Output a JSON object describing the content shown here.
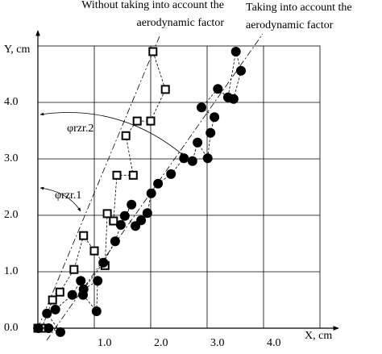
{
  "chart_data": {
    "type": "scatter",
    "x_label": "X, cm",
    "y_label": "Y, cm",
    "xlim": [
      0,
      5
    ],
    "ylim": [
      0,
      5
    ],
    "xticks": [
      {
        "value": 1,
        "label": "1.0"
      },
      {
        "value": 2,
        "label": "2.0"
      },
      {
        "value": 3,
        "label": "3.0"
      },
      {
        "value": 4,
        "label": "4.0"
      }
    ],
    "yticks": [
      {
        "value": 0,
        "label": "0.0"
      },
      {
        "value": 1,
        "label": "1.0"
      },
      {
        "value": 2,
        "label": "2.0"
      },
      {
        "value": 3,
        "label": "3.0"
      },
      {
        "value": 4,
        "label": "4.0"
      }
    ],
    "grid": true,
    "annotations": [
      "φrzr.2",
      "φrzr.1"
    ],
    "series": [
      {
        "name": "Without taking into account the aerodynamic factor",
        "marker": "square",
        "color": "#000000",
        "x": [
          0,
          0.07,
          0.26,
          0.39,
          0.64,
          0.81,
          1.0,
          1.19,
          1.23,
          1.34,
          1.4,
          1.69,
          1.56,
          1.76,
          2.0,
          2.26,
          2.04
        ],
        "values": [
          0,
          0,
          0.5,
          0.64,
          1.04,
          1.64,
          1.37,
          1.11,
          2.03,
          1.9,
          2.71,
          2.71,
          3.41,
          3.67,
          3.67,
          4.23,
          4.9
        ]
      },
      {
        "name": "Taking into account the aerodynamic factor",
        "marker": "circle",
        "color": "#000000",
        "x": [
          0.01,
          0.19,
          0.4,
          0.16,
          0.31,
          0.61,
          0.76,
          0.8,
          1.04,
          1.06,
          0.81,
          1.16,
          1.37,
          1.47,
          1.66,
          1.54,
          1.73,
          1.83,
          1.94,
          2.01,
          2.13,
          2.36,
          2.59,
          2.74,
          2.83,
          3.01,
          3.06,
          3.13,
          2.9,
          3.19,
          3.37,
          3.51,
          3.6,
          3.47
        ],
        "values": [
          0,
          0,
          -0.07,
          0.26,
          0.33,
          0.59,
          0.84,
          0.59,
          0.3,
          0.84,
          0.69,
          1.16,
          1.54,
          1.83,
          2.19,
          1.99,
          1.81,
          1.91,
          2.04,
          2.39,
          2.56,
          2.73,
          3.01,
          2.96,
          3.29,
          3.01,
          3.46,
          3.74,
          3.91,
          4.24,
          4.09,
          4.9,
          4.56,
          4.06
        ]
      }
    ]
  }
}
